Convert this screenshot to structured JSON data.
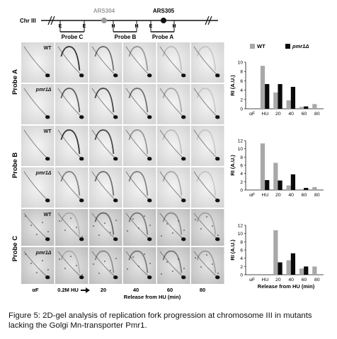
{
  "map": {
    "chromosome": "Chr III",
    "origins": [
      "ARS304",
      "ARS305"
    ],
    "origin_colors": [
      "#9a9a9a",
      "#111111"
    ],
    "probes": [
      "Probe C",
      "Probe B",
      "Probe A"
    ],
    "sites": [
      {
        "label": "E"
      },
      {
        "label": "E"
      },
      {
        "label": "H"
      },
      {
        "label": "H"
      },
      {
        "label": "E"
      },
      {
        "label": "H"
      }
    ]
  },
  "gels": {
    "panel_labels": [
      "Probe A",
      "Probe B",
      "Probe C"
    ],
    "strain_labels": [
      "WT",
      "pmr1Δ"
    ],
    "column_labels": [
      "αF",
      "0.2M HU",
      "20",
      "40",
      "60",
      "80"
    ],
    "xlabel": "Release from HU (min)"
  },
  "chart_data": [
    {
      "type": "bar",
      "panel": "Probe A",
      "categories": [
        "αF",
        "HU",
        "20",
        "40",
        "60",
        "80"
      ],
      "series": [
        {
          "name": "WT",
          "color": "#a8a8a8",
          "values": [
            0,
            9.2,
            3.5,
            1.8,
            0.4,
            1.0
          ]
        },
        {
          "name": "pmr1Δ",
          "color": "#0a0a0a",
          "values": [
            0,
            5.3,
            5.3,
            4.7,
            0.5,
            0
          ]
        }
      ],
      "ylabel": "RI (A.U.)",
      "xlabel": "",
      "ylim": [
        0,
        10
      ],
      "yticks": [
        0,
        2,
        4,
        6,
        8,
        10
      ],
      "legend": "top"
    },
    {
      "type": "bar",
      "panel": "Probe B",
      "categories": [
        "αF",
        "HU",
        "20",
        "40",
        "60",
        "80"
      ],
      "series": [
        {
          "name": "WT",
          "color": "#a8a8a8",
          "values": [
            0,
            11.3,
            6.6,
            1.1,
            0.2,
            0.7
          ]
        },
        {
          "name": "pmr1Δ",
          "color": "#0a0a0a",
          "values": [
            0,
            2.4,
            2.3,
            3.8,
            0.5,
            0
          ]
        }
      ],
      "ylabel": "RI (A.U.)",
      "xlabel": "",
      "ylim": [
        0,
        12
      ],
      "yticks": [
        0,
        2,
        4,
        6,
        8,
        10,
        12
      ]
    },
    {
      "type": "bar",
      "panel": "Probe C",
      "categories": [
        "αF",
        "HU",
        "20",
        "40",
        "60",
        "80"
      ],
      "series": [
        {
          "name": "WT",
          "color": "#a8a8a8",
          "values": [
            0,
            0,
            10.8,
            3.5,
            1.5,
            2.0
          ]
        },
        {
          "name": "pmr1Δ",
          "color": "#0a0a0a",
          "values": [
            0,
            0,
            3.0,
            5.2,
            2.0,
            0
          ]
        }
      ],
      "ylabel": "RI (A.U.)",
      "xlabel": "Release from HU (min)",
      "ylim": [
        0,
        12
      ],
      "yticks": [
        0,
        2,
        4,
        6,
        8,
        10,
        12
      ]
    }
  ],
  "caption": "Figure 5: 2D-gel analysis of replication fork progression at chromosome III in mutants lacking the Golgi Mn-transporter Pmr1."
}
